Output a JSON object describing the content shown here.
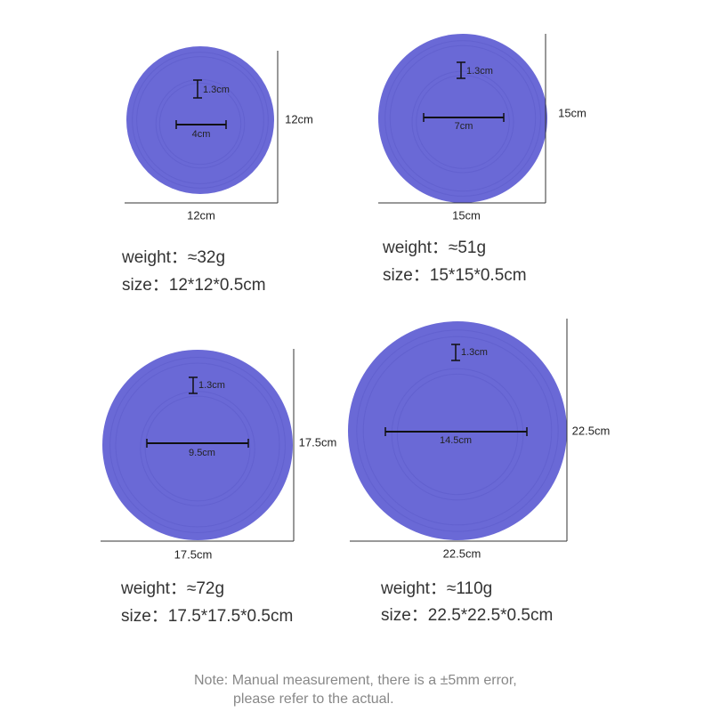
{
  "items": [
    {
      "ring": "1.3cm",
      "inner": "4cm",
      "height": "12cm",
      "width": "12cm",
      "weight": "weight：≈32g",
      "size": "size：12*12*0.5cm"
    },
    {
      "ring": "1.3cm",
      "inner": "7cm",
      "height": "15cm",
      "width": "15cm",
      "weight": "weight：≈51g",
      "size": "size：15*15*0.5cm"
    },
    {
      "ring": "1.3cm",
      "inner": "9.5cm",
      "height": "17.5cm",
      "width": "17.5cm",
      "weight": "weight：≈72g",
      "size": "size：17.5*17.5*0.5cm"
    },
    {
      "ring": "1.3cm",
      "inner": "14.5cm",
      "height": "22.5cm",
      "width": "22.5cm",
      "weight": "weight：≈110g",
      "size": "size：22.5*22.5*0.5cm"
    }
  ],
  "note": [
    "Note: Manual measurement, there is a ±5mm error,",
    "please refer to the actual."
  ]
}
